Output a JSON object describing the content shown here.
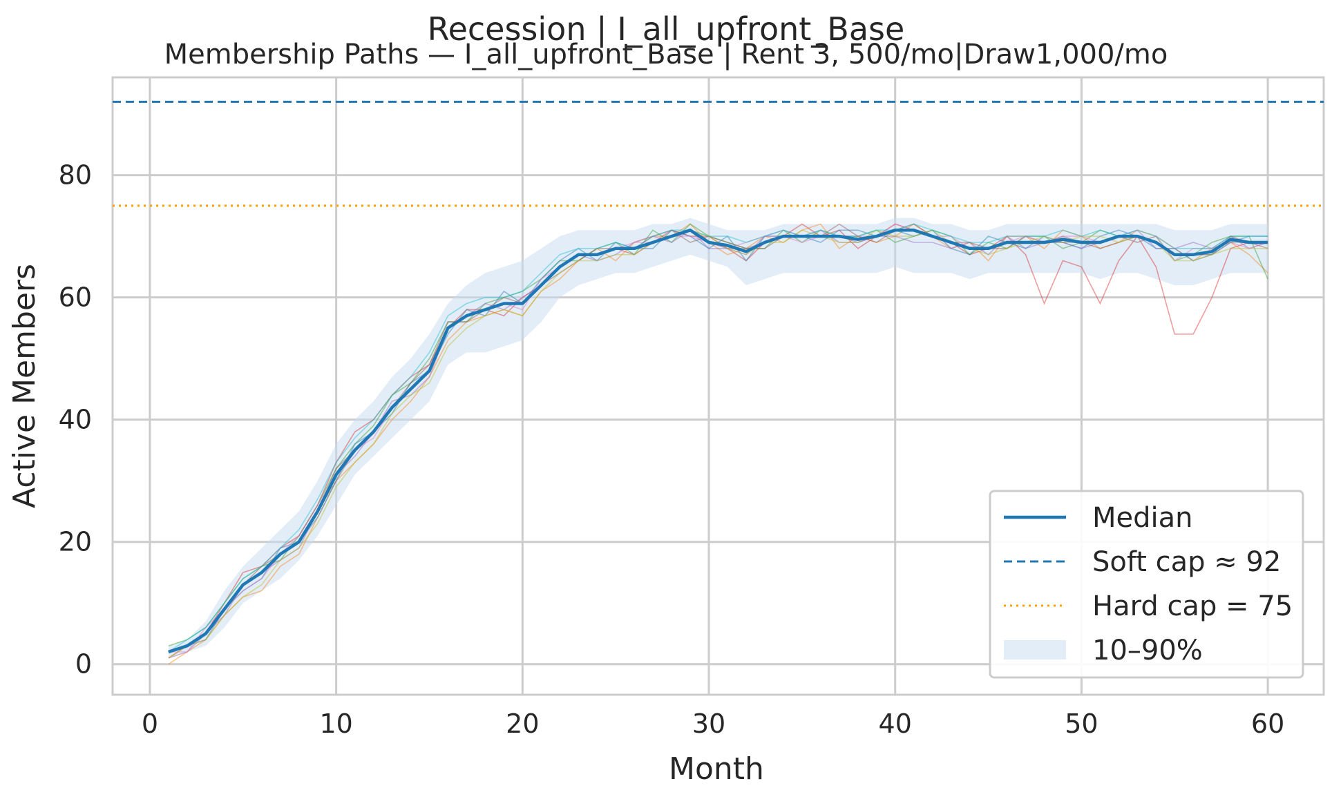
{
  "chart_data": {
    "type": "line",
    "suptitle": "Recession | I_all_upfront_Base",
    "title": "Membership Paths — I_all_upfront_Base | Rent 3, 500/mo|Draw1,000/mo",
    "xlabel": "Month",
    "ylabel": "Active Members",
    "xlim": [
      -2,
      63
    ],
    "ylim": [
      -5,
      96
    ],
    "xticks": [
      0,
      10,
      20,
      30,
      40,
      50,
      60
    ],
    "yticks": [
      0,
      20,
      40,
      60,
      80
    ],
    "grid": true,
    "legend_position": "lower-right",
    "legend": [
      {
        "label": "Median",
        "style": "solid",
        "color": "#1f77b4"
      },
      {
        "label": "Soft cap ≈ 92",
        "style": "dashed",
        "color": "#1f77b4"
      },
      {
        "label": "Hard cap = 75",
        "style": "dotted",
        "color": "#ff9f00"
      },
      {
        "label": "10–90%",
        "style": "band",
        "color": "#c6dbef"
      }
    ],
    "reference_lines": [
      {
        "label": "Soft cap ≈ 92",
        "y": 92,
        "style": "dashed",
        "color": "#1f77b4"
      },
      {
        "label": "Hard cap = 75",
        "y": 75,
        "style": "dotted",
        "color": "#ff9f00"
      }
    ],
    "median": {
      "x": [
        1,
        2,
        3,
        4,
        5,
        6,
        7,
        8,
        9,
        10,
        11,
        12,
        13,
        14,
        15,
        16,
        17,
        18,
        19,
        20,
        21,
        22,
        23,
        24,
        25,
        26,
        27,
        28,
        29,
        30,
        31,
        32,
        33,
        34,
        35,
        36,
        37,
        38,
        39,
        40,
        41,
        42,
        43,
        44,
        45,
        46,
        47,
        48,
        49,
        50,
        51,
        52,
        53,
        54,
        55,
        56,
        57,
        58,
        59,
        60
      ],
      "y": [
        2,
        3,
        5,
        9,
        13,
        15,
        18,
        20,
        25,
        31,
        35,
        38,
        42,
        45,
        48,
        55,
        57,
        58,
        59,
        59,
        62,
        65,
        67,
        67,
        68,
        68,
        69,
        70,
        71,
        69,
        68.5,
        67.5,
        69,
        70,
        70,
        70,
        70,
        69.5,
        70,
        71,
        71,
        70,
        69,
        68,
        68,
        69,
        69,
        69,
        69.5,
        69,
        69,
        70,
        70,
        69,
        67,
        67,
        67.5,
        69.5,
        69,
        69
      ]
    },
    "band_10_90": {
      "lower": [
        1,
        2,
        3,
        6,
        10,
        12,
        14,
        17,
        21,
        26,
        31,
        34,
        37,
        40,
        43,
        49,
        51,
        51,
        52,
        53,
        56,
        60,
        62,
        63,
        64,
        64,
        65,
        66,
        67,
        66,
        65,
        62,
        63,
        64,
        64,
        64,
        64,
        64,
        64,
        65,
        64,
        64,
        64,
        63,
        64,
        64,
        64,
        64,
        64,
        64,
        63,
        64,
        64,
        63,
        62,
        62,
        63,
        64,
        64,
        64
      ],
      "upper": [
        3,
        4,
        7,
        12,
        16,
        19,
        22,
        25,
        30,
        36,
        40,
        43,
        47,
        50,
        54,
        59,
        62,
        64,
        65,
        66,
        68,
        70,
        71,
        71,
        71,
        71,
        72,
        72,
        73,
        72,
        71,
        71,
        71,
        72,
        72,
        72,
        72,
        72,
        72,
        73,
        73,
        72,
        72,
        71,
        71,
        72,
        72,
        72,
        72,
        72,
        72,
        72,
        72,
        72,
        71,
        71,
        71,
        72,
        72,
        72
      ]
    },
    "band_color": "#c6dbef",
    "median_color": "#1f77b4",
    "path_colors": [
      "#1f77b4",
      "#ff7f0e",
      "#2ca02c",
      "#d62728",
      "#9467bd",
      "#8c564b",
      "#e377c2",
      "#7f7f7f",
      "#bcbd22",
      "#17becf"
    ],
    "paths": [
      {
        "color": "#d62728",
        "y": [
          1,
          3,
          5,
          10,
          15,
          16,
          19,
          21,
          26,
          33,
          38,
          40,
          44,
          47,
          49,
          55,
          58,
          58,
          57,
          60,
          62,
          65,
          67,
          67,
          68,
          67,
          69,
          71,
          70,
          70,
          68,
          66,
          69,
          70,
          72,
          70,
          71,
          68,
          70,
          72,
          71,
          70,
          69,
          67,
          68,
          70,
          67,
          59,
          66,
          65,
          59,
          66,
          70,
          65,
          54,
          54,
          60,
          68,
          69,
          69
        ]
      },
      {
        "color": "#ff7f0e",
        "y": [
          0,
          2,
          4,
          8,
          11,
          12,
          16,
          18,
          24,
          30,
          33,
          36,
          40,
          43,
          47,
          53,
          56,
          57,
          58,
          57,
          61,
          63,
          66,
          68,
          66,
          69,
          70,
          70,
          72,
          69,
          67,
          68,
          70,
          69,
          71,
          72,
          68,
          70,
          69,
          70,
          72,
          70,
          68,
          69,
          66,
          70,
          70,
          68,
          71,
          70,
          68,
          69,
          71,
          70,
          68,
          66,
          68,
          69,
          67,
          64
        ]
      },
      {
        "color": "#2ca02c",
        "y": [
          3,
          4,
          6,
          10,
          14,
          16,
          17,
          21,
          26,
          32,
          36,
          39,
          44,
          46,
          50,
          56,
          56,
          59,
          60,
          61,
          63,
          66,
          66,
          68,
          69,
          67,
          71,
          69,
          72,
          70,
          69,
          68,
          68,
          71,
          69,
          71,
          70,
          70,
          71,
          69,
          70,
          71,
          70,
          67,
          69,
          68,
          70,
          70,
          68,
          69,
          71,
          70,
          69,
          70,
          66,
          67,
          69,
          70,
          70,
          63
        ]
      },
      {
        "color": "#1f77b4",
        "y": [
          2,
          3,
          4,
          9,
          12,
          14,
          19,
          20,
          24,
          30,
          36,
          38,
          41,
          46,
          48,
          54,
          58,
          57,
          61,
          59,
          63,
          66,
          68,
          66,
          69,
          68,
          68,
          71,
          70,
          68,
          70,
          66,
          70,
          70,
          70,
          69,
          71,
          71,
          70,
          71,
          70,
          71,
          68,
          67,
          70,
          69,
          68,
          70,
          69,
          68,
          70,
          71,
          70,
          68,
          68,
          66,
          67,
          69,
          70,
          70
        ]
      },
      {
        "color": "#9467bd",
        "y": [
          1,
          2,
          5,
          8,
          13,
          15,
          17,
          19,
          25,
          31,
          34,
          38,
          43,
          44,
          47,
          55,
          57,
          59,
          58,
          60,
          62,
          65,
          67,
          66,
          67,
          69,
          70,
          69,
          71,
          68,
          68,
          67,
          70,
          71,
          70,
          71,
          69,
          69,
          70,
          70,
          69,
          69,
          68,
          69,
          67,
          70,
          68,
          69,
          69,
          68,
          69,
          70,
          71,
          68,
          68,
          69,
          68,
          70,
          68,
          69
        ]
      },
      {
        "color": "#8c564b",
        "y": [
          2,
          3,
          5,
          9,
          13,
          16,
          18,
          20,
          25,
          32,
          35,
          38,
          42,
          46,
          49,
          56,
          56,
          58,
          60,
          59,
          62,
          64,
          66,
          68,
          68,
          68,
          70,
          71,
          69,
          70,
          69,
          68,
          68,
          70,
          70,
          70,
          72,
          70,
          69,
          71,
          72,
          70,
          69,
          69,
          68,
          68,
          70,
          69,
          70,
          69,
          68,
          69,
          70,
          69,
          67,
          67,
          67,
          70,
          69,
          68
        ]
      },
      {
        "color": "#e377c2",
        "y": [
          2,
          2,
          6,
          9,
          12,
          14,
          18,
          21,
          26,
          31,
          35,
          37,
          42,
          45,
          48,
          55,
          57,
          58,
          59,
          58,
          63,
          65,
          67,
          67,
          68,
          69,
          69,
          70,
          70,
          69,
          68,
          69,
          70,
          70,
          69,
          70,
          70,
          70,
          70,
          72,
          71,
          70,
          70,
          68,
          68,
          69,
          70,
          69,
          70,
          70,
          69,
          70,
          69,
          70,
          66,
          68,
          68,
          69,
          68,
          69
        ]
      },
      {
        "color": "#7f7f7f",
        "y": [
          2,
          3,
          5,
          9,
          13,
          15,
          18,
          20,
          25,
          30,
          35,
          38,
          42,
          45,
          48,
          55,
          57,
          58,
          59,
          59,
          62,
          65,
          67,
          67,
          68,
          68,
          69,
          70,
          71,
          69,
          68,
          68,
          69,
          70,
          70,
          70,
          70,
          69,
          70,
          71,
          71,
          70,
          69,
          68,
          68,
          69,
          69,
          69,
          69,
          69,
          69,
          70,
          70,
          69,
          67,
          67,
          67,
          69,
          69,
          69
        ]
      },
      {
        "color": "#bcbd22",
        "y": [
          1,
          3,
          4,
          8,
          11,
          13,
          17,
          19,
          23,
          29,
          33,
          36,
          41,
          44,
          46,
          52,
          55,
          57,
          58,
          57,
          61,
          64,
          66,
          66,
          67,
          67,
          69,
          70,
          71,
          70,
          68,
          67,
          69,
          69,
          71,
          70,
          69,
          69,
          71,
          70,
          70,
          71,
          69,
          68,
          67,
          68,
          69,
          70,
          69,
          70,
          70,
          69,
          70,
          69,
          66,
          66,
          67,
          68,
          68,
          68
        ]
      },
      {
        "color": "#17becf",
        "y": [
          2,
          4,
          6,
          10,
          14,
          16,
          19,
          22,
          27,
          33,
          37,
          40,
          44,
          47,
          51,
          57,
          59,
          60,
          60,
          61,
          64,
          67,
          68,
          68,
          69,
          68,
          70,
          71,
          71,
          70,
          70,
          69,
          70,
          71,
          70,
          71,
          70,
          70,
          71,
          71,
          72,
          71,
          70,
          69,
          69,
          70,
          70,
          70,
          71,
          70,
          71,
          70,
          71,
          70,
          68,
          68,
          68,
          70,
          70,
          70
        ]
      }
    ]
  }
}
